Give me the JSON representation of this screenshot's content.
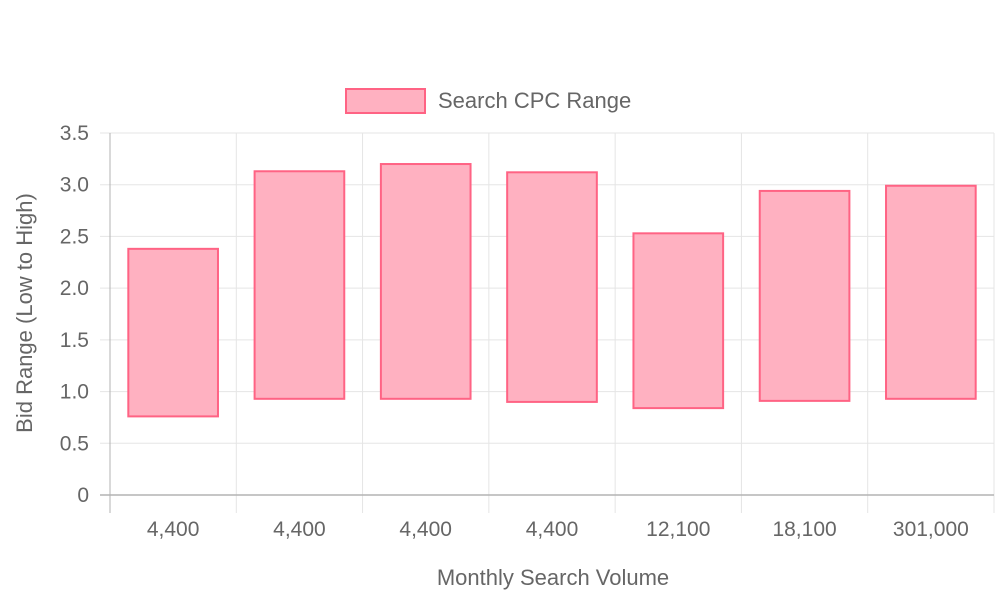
{
  "chart_data": {
    "type": "bar",
    "title": "",
    "legend": {
      "position": "top",
      "entries": [
        "Search CPC Range"
      ]
    },
    "xlabel": "Monthly Search Volume",
    "ylabel": "Bid Range (Low to High)",
    "categories": [
      "4,400",
      "4,400",
      "4,400",
      "4,400",
      "12,100",
      "18,100",
      "301,000"
    ],
    "series": [
      {
        "name": "Search CPC Range",
        "ranges": [
          [
            0.76,
            2.38
          ],
          [
            0.93,
            3.13
          ],
          [
            0.93,
            3.2
          ],
          [
            0.9,
            3.12
          ],
          [
            0.84,
            2.53
          ],
          [
            0.91,
            2.94
          ],
          [
            0.93,
            2.99
          ]
        ]
      }
    ],
    "ylim": [
      0,
      3.5
    ],
    "yticks": [
      "0",
      "0.5",
      "1.0",
      "1.5",
      "2.0",
      "2.5",
      "3.0",
      "3.5"
    ],
    "grid": true,
    "colors": {
      "bar_fill": "#ffb1c1",
      "bar_border": "#ff6384",
      "grid": "#e5e5e5",
      "axis": "#b3b3b3",
      "text": "#666666"
    }
  }
}
